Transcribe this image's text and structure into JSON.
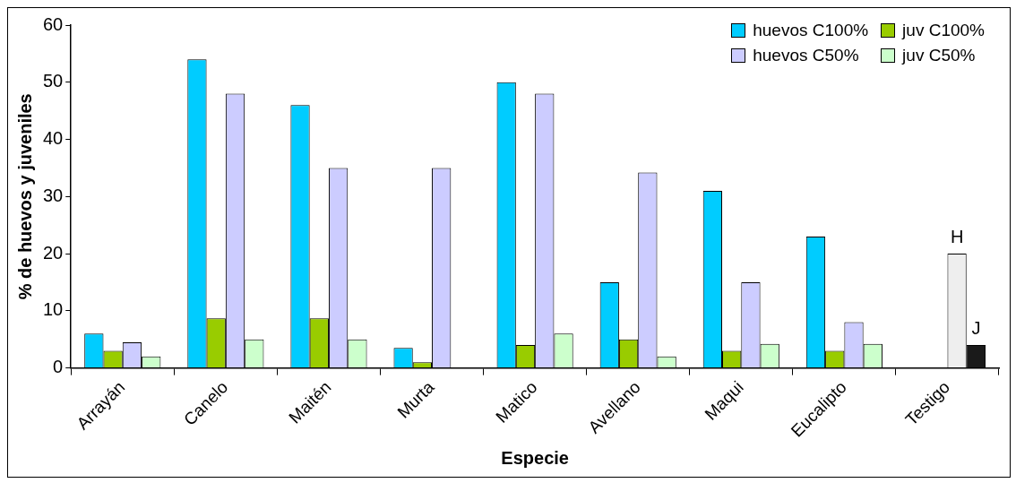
{
  "chart_data": {
    "type": "bar",
    "xlabel": "Especie",
    "ylabel": "% de huevos y juveniles",
    "categories": [
      "Arrayán",
      "Canelo",
      "Maitén",
      "Murta",
      "Matico",
      "Avellano",
      "Maqui",
      "Eucalipto",
      "Testigo"
    ],
    "series": [
      {
        "name": "huevos C100%",
        "color": "#00ccff",
        "values": [
          6,
          54,
          46,
          3.5,
          50,
          15,
          31,
          23,
          null
        ]
      },
      {
        "name": "juv C100%",
        "color": "#99cc00",
        "values": [
          3,
          8.7,
          8.7,
          1,
          4,
          5,
          3,
          3,
          null
        ]
      },
      {
        "name": "huevos C50%",
        "color": "#ccccff",
        "colors": [
          "#ccccff",
          "#ccccff",
          "#ccccff",
          "#ccccff",
          "#ccccff",
          "#ccccff",
          "#ccccff",
          "#ccccff",
          "#eeeeee"
        ],
        "values": [
          4.5,
          48,
          35,
          35,
          48,
          34.2,
          15,
          8,
          20
        ]
      },
      {
        "name": "juv C50%",
        "color": "#ccffcc",
        "colors": [
          "#ccffcc",
          "#ccffcc",
          "#ccffcc",
          "#ccffcc",
          "#ccffcc",
          "#ccffcc",
          "#ccffcc",
          "#ccffcc",
          "#1a1a1a"
        ],
        "values": [
          2,
          5,
          5,
          null,
          6,
          2,
          4.2,
          4.2,
          4
        ]
      }
    ],
    "annotations": [
      {
        "text": "H",
        "x": "Testigo",
        "y": 20
      },
      {
        "text": "J",
        "x": "Testigo",
        "y": 4
      }
    ],
    "ylim": [
      0,
      60
    ],
    "yticks": [
      0,
      10,
      20,
      30,
      40,
      50,
      60
    ],
    "grid": false,
    "legend": "top right"
  }
}
